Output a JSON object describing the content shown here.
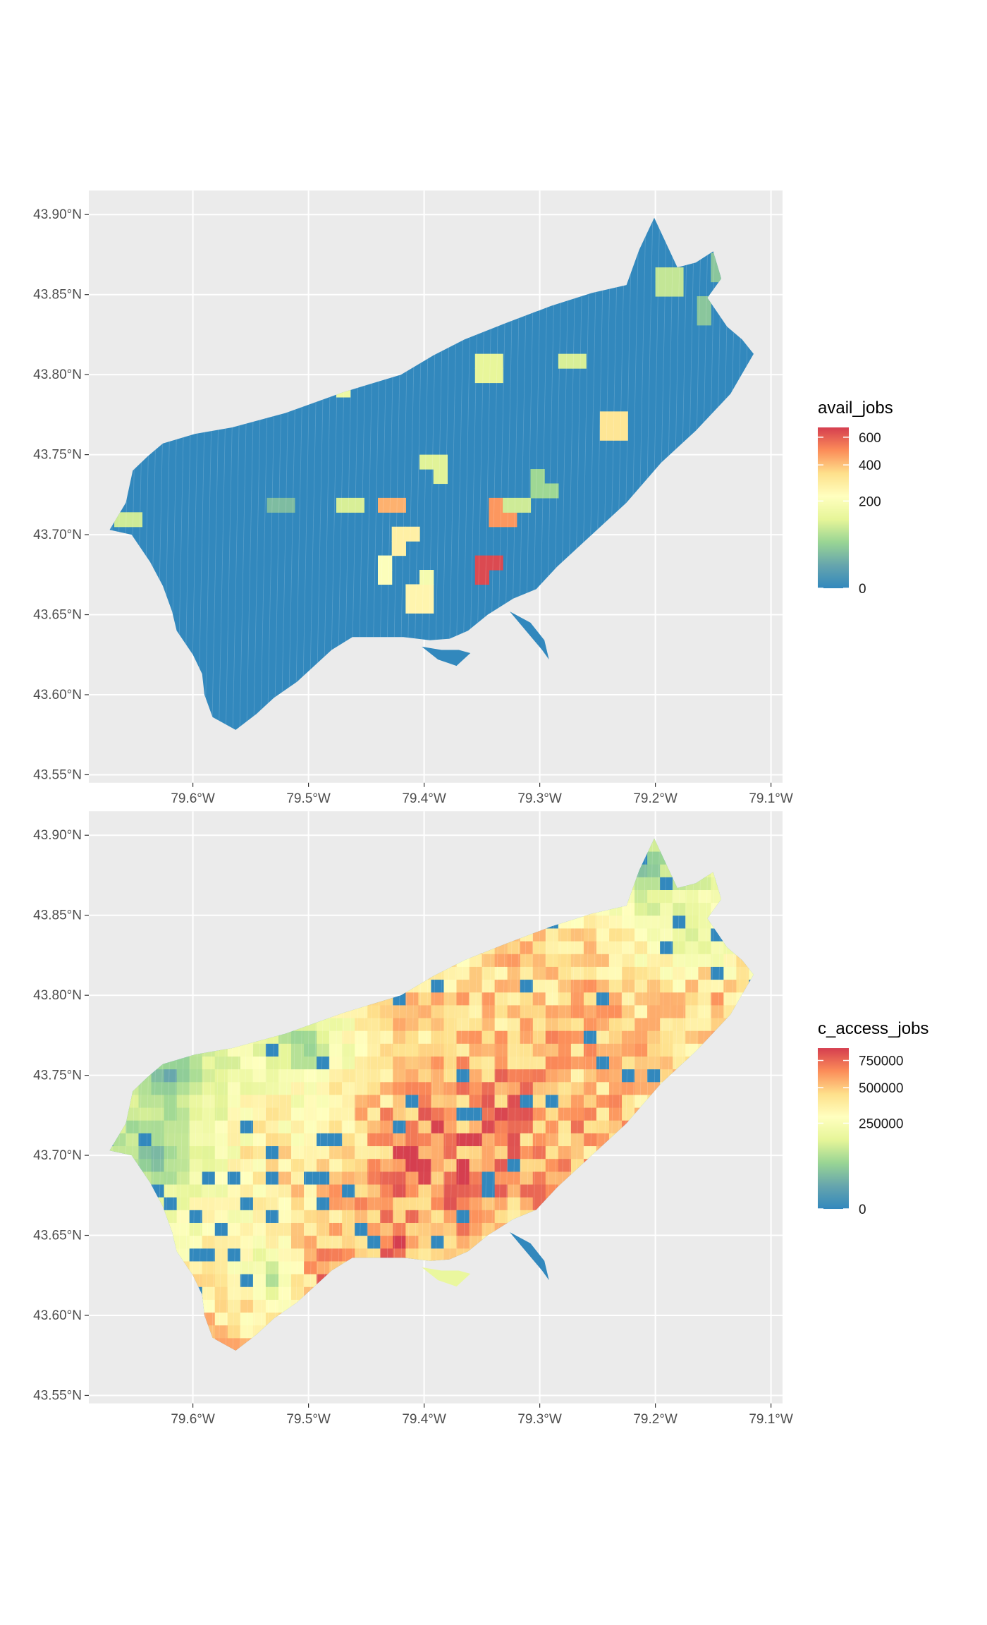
{
  "colors": {
    "panel_bg": "#ebebeb",
    "grid": "#ffffff",
    "land_low": "#3288bd",
    "palette": [
      "#3288bd",
      "#66a5ad",
      "#99d594",
      "#e6f598",
      "#ffffbf",
      "#fee08b",
      "#fc8d59",
      "#d53e4f"
    ]
  },
  "chart_data": [
    {
      "type": "map",
      "fill_variable": "avail_jobs",
      "legend": {
        "title": "avail_jobs",
        "ticks": [
          0,
          200,
          400,
          600
        ],
        "tick_labels": [
          "0",
          "200",
          "400",
          "600"
        ],
        "range": [
          0,
          680
        ],
        "scale": "sqrt"
      },
      "x_ticks": [
        "79.6°W",
        "79.5°W",
        "79.4°W",
        "79.3°W",
        "79.2°W",
        "79.1°W"
      ],
      "y_ticks": [
        "43.90°N",
        "43.85°N",
        "43.80°N",
        "43.75°N",
        "43.70°N",
        "43.65°N",
        "43.60°N",
        "43.55°N"
      ],
      "x_tick_values": [
        -79.6,
        -79.5,
        -79.4,
        -79.3,
        -79.2,
        -79.1
      ],
      "y_tick_values": [
        43.9,
        43.85,
        43.8,
        43.75,
        43.7,
        43.65,
        43.6,
        43.55
      ],
      "xlim": [
        -79.69,
        -79.09
      ],
      "ylim": [
        43.545,
        43.915
      ],
      "base_value": 0,
      "hotspots": [
        {
          "lon": -79.348,
          "lat": 43.68,
          "value": 650
        },
        {
          "lon": -79.333,
          "lat": 43.712,
          "value": 480
        },
        {
          "lon": -79.427,
          "lat": 43.72,
          "value": 430
        },
        {
          "lon": -79.237,
          "lat": 43.768,
          "value": 320
        },
        {
          "lon": -79.418,
          "lat": 43.698,
          "value": 280
        },
        {
          "lon": -79.404,
          "lat": 43.66,
          "value": 260
        },
        {
          "lon": -79.4,
          "lat": 43.667,
          "value": 180
        },
        {
          "lon": -79.435,
          "lat": 43.677,
          "value": 210
        },
        {
          "lon": -79.389,
          "lat": 43.743,
          "value": 120
        },
        {
          "lon": -79.271,
          "lat": 43.81,
          "value": 110
        },
        {
          "lon": -79.324,
          "lat": 43.718,
          "value": 100
        },
        {
          "lon": -79.652,
          "lat": 43.71,
          "value": 100
        },
        {
          "lon": -79.189,
          "lat": 43.858,
          "value": 90
        },
        {
          "lon": -79.146,
          "lat": 43.865,
          "value": 40
        },
        {
          "lon": -79.16,
          "lat": 43.84,
          "value": 40
        },
        {
          "lon": -79.463,
          "lat": 43.72,
          "value": 110
        },
        {
          "lon": -79.342,
          "lat": 43.803,
          "value": 130
        },
        {
          "lon": -79.471,
          "lat": 43.795,
          "value": 150
        },
        {
          "lon": -79.3,
          "lat": 43.73,
          "value": 60
        },
        {
          "lon": -79.523,
          "lat": 43.718,
          "value": 30
        }
      ]
    },
    {
      "type": "map",
      "fill_variable": "c_access_jobs",
      "legend": {
        "title": "c_access_jobs",
        "ticks": [
          0,
          250000,
          500000,
          750000
        ],
        "tick_labels": [
          "0",
          "250000",
          "500000",
          "750000"
        ],
        "range": [
          0,
          880000
        ],
        "scale": "sqrt"
      },
      "x_ticks": [
        "79.6°W",
        "79.5°W",
        "79.4°W",
        "79.3°W",
        "79.2°W",
        "79.1°W"
      ],
      "y_ticks": [
        "43.90°N",
        "43.85°N",
        "43.80°N",
        "43.75°N",
        "43.70°N",
        "43.65°N",
        "43.60°N",
        "43.55°N"
      ],
      "x_tick_values": [
        -79.6,
        -79.5,
        -79.4,
        -79.3,
        -79.2,
        -79.1
      ],
      "y_tick_values": [
        43.9,
        43.85,
        43.8,
        43.75,
        43.7,
        43.65,
        43.6,
        43.55
      ],
      "xlim": [
        -79.69,
        -79.09
      ],
      "ylim": [
        43.545,
        43.915
      ],
      "base_value": 0,
      "hotspots": [
        {
          "lon": -79.4,
          "lat": 43.7,
          "value": 800000
        },
        {
          "lon": -79.37,
          "lat": 43.69,
          "value": 760000
        },
        {
          "lon": -79.43,
          "lat": 43.645,
          "value": 820000
        },
        {
          "lon": -79.49,
          "lat": 43.625,
          "value": 700000
        },
        {
          "lon": -79.33,
          "lat": 43.73,
          "value": 680000
        },
        {
          "lon": -79.25,
          "lat": 43.79,
          "value": 560000
        },
        {
          "lon": -79.15,
          "lat": 43.795,
          "value": 520000
        },
        {
          "lon": -79.57,
          "lat": 43.595,
          "value": 500000
        },
        {
          "lon": -79.3,
          "lat": 43.825,
          "value": 480000
        },
        {
          "lon": -79.42,
          "lat": 43.77,
          "value": 450000
        },
        {
          "lon": -79.53,
          "lat": 43.7,
          "value": 400000
        },
        {
          "lon": -79.39,
          "lat": 43.625,
          "value": 200000
        },
        {
          "lon": -79.63,
          "lat": 43.7,
          "value": 0
        },
        {
          "lon": -79.62,
          "lat": 43.75,
          "value": 0
        },
        {
          "lon": -79.5,
          "lat": 43.77,
          "value": 0
        },
        {
          "lon": -79.21,
          "lat": 43.88,
          "value": 0
        },
        {
          "lon": -79.17,
          "lat": 43.84,
          "value": 120000
        },
        {
          "lon": -79.53,
          "lat": 43.625,
          "value": 0
        }
      ]
    }
  ]
}
